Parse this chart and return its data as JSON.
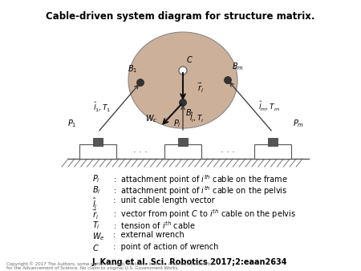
{
  "title": "Cable-driven system diagram for structure matrix.",
  "title_fontsize": 8.5,
  "bg_color": "#ffffff",
  "circle_color": "#cdb09a",
  "circle_edge_color": "#888888",
  "legend_lines": [
    [
      "$P_i$",
      " :  attachment point of $i^{th}$ cable on the frame"
    ],
    [
      "$B_i$",
      " :  attachment point of $i^{th}$ cable on the pelvis"
    ],
    [
      "$\\hat{l}_i$",
      " :  unit cable length vector"
    ],
    [
      "$\\vec{r}_i$",
      " :  vector from point $C$ to $i^{th}$ cable on the pelvis"
    ],
    [
      "$T_i$",
      " :  tension of $i^{th}$ cable"
    ],
    [
      "$W_e$",
      " :  external wrench"
    ],
    [
      "$C$",
      " :  point of action of wrench"
    ]
  ],
  "citation": "J. Kang et al. Sci. Robotics 2017;2:eaan2634",
  "copyright": "Copyright © 2017 The Authors, some rights reserved, exclusive licensee American Association\nfor the Advancement of Science. No claim to original U.S. Government Works."
}
